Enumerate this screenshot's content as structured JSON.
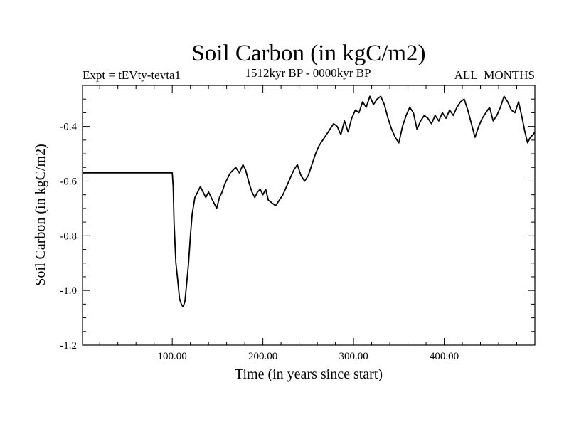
{
  "chart_data": {
    "type": "line",
    "title": "Soil Carbon (in kgC/m2)",
    "subtitle_left": "Expt = tEVty-tevta1",
    "subtitle_center": "1512kyr BP - 0000kyr BP",
    "subtitle_right": "ALL_MONTHS",
    "xlabel": "Time (in years since start)",
    "ylabel": "Soil Carbon (in kgC/m2)",
    "xlim": [
      1,
      500
    ],
    "ylim": [
      -1.2,
      -0.25
    ],
    "xticks": [
      {
        "value": 100,
        "label": "100.00"
      },
      {
        "value": 200,
        "label": "200.00"
      },
      {
        "value": 300,
        "label": "300.00"
      },
      {
        "value": 400,
        "label": "400.00"
      }
    ],
    "yticks": [
      {
        "value": -1.2,
        "label": "-1.2"
      },
      {
        "value": -1.0,
        "label": "-1.0"
      },
      {
        "value": -0.8,
        "label": "-0.8"
      },
      {
        "value": -0.6,
        "label": "-0.6"
      },
      {
        "value": -0.4,
        "label": "-0.4"
      }
    ],
    "series": [
      {
        "name": "Soil Carbon",
        "color": "#000000",
        "points": [
          [
            1,
            -0.57
          ],
          [
            100,
            -0.57
          ],
          [
            101,
            -0.62
          ],
          [
            102,
            -0.75
          ],
          [
            104,
            -0.9
          ],
          [
            106,
            -0.96
          ],
          [
            108,
            -1.03
          ],
          [
            110,
            -1.05
          ],
          [
            112,
            -1.06
          ],
          [
            114,
            -1.04
          ],
          [
            116,
            -0.97
          ],
          [
            118,
            -0.9
          ],
          [
            120,
            -0.8
          ],
          [
            122,
            -0.72
          ],
          [
            125,
            -0.66
          ],
          [
            128,
            -0.64
          ],
          [
            131,
            -0.62
          ],
          [
            134,
            -0.64
          ],
          [
            137,
            -0.66
          ],
          [
            140,
            -0.64
          ],
          [
            143,
            -0.66
          ],
          [
            146,
            -0.68
          ],
          [
            149,
            -0.7
          ],
          [
            152,
            -0.66
          ],
          [
            155,
            -0.64
          ],
          [
            158,
            -0.61
          ],
          [
            161,
            -0.59
          ],
          [
            164,
            -0.57
          ],
          [
            167,
            -0.56
          ],
          [
            170,
            -0.55
          ],
          [
            174,
            -0.57
          ],
          [
            178,
            -0.54
          ],
          [
            181,
            -0.56
          ],
          [
            185,
            -0.61
          ],
          [
            188,
            -0.64
          ],
          [
            191,
            -0.66
          ],
          [
            194,
            -0.64
          ],
          [
            197,
            -0.63
          ],
          [
            200,
            -0.65
          ],
          [
            203,
            -0.63
          ],
          [
            206,
            -0.67
          ],
          [
            210,
            -0.68
          ],
          [
            214,
            -0.69
          ],
          [
            218,
            -0.67
          ],
          [
            222,
            -0.65
          ],
          [
            226,
            -0.62
          ],
          [
            230,
            -0.59
          ],
          [
            234,
            -0.56
          ],
          [
            238,
            -0.54
          ],
          [
            242,
            -0.58
          ],
          [
            246,
            -0.6
          ],
          [
            250,
            -0.58
          ],
          [
            254,
            -0.54
          ],
          [
            258,
            -0.5
          ],
          [
            262,
            -0.47
          ],
          [
            266,
            -0.45
          ],
          [
            270,
            -0.43
          ],
          [
            274,
            -0.41
          ],
          [
            278,
            -0.39
          ],
          [
            282,
            -0.4
          ],
          [
            286,
            -0.43
          ],
          [
            290,
            -0.38
          ],
          [
            294,
            -0.42
          ],
          [
            298,
            -0.37
          ],
          [
            302,
            -0.34
          ],
          [
            306,
            -0.35
          ],
          [
            310,
            -0.31
          ],
          [
            314,
            -0.33
          ],
          [
            318,
            -0.29
          ],
          [
            322,
            -0.32
          ],
          [
            326,
            -0.3
          ],
          [
            330,
            -0.29
          ],
          [
            334,
            -0.32
          ],
          [
            338,
            -0.37
          ],
          [
            342,
            -0.41
          ],
          [
            346,
            -0.44
          ],
          [
            350,
            -0.46
          ],
          [
            354,
            -0.4
          ],
          [
            358,
            -0.36
          ],
          [
            362,
            -0.33
          ],
          [
            366,
            -0.35
          ],
          [
            370,
            -0.41
          ],
          [
            374,
            -0.38
          ],
          [
            378,
            -0.36
          ],
          [
            382,
            -0.37
          ],
          [
            386,
            -0.39
          ],
          [
            390,
            -0.36
          ],
          [
            394,
            -0.38
          ],
          [
            398,
            -0.35
          ],
          [
            402,
            -0.37
          ],
          [
            406,
            -0.34
          ],
          [
            410,
            -0.36
          ],
          [
            414,
            -0.33
          ],
          [
            418,
            -0.31
          ],
          [
            422,
            -0.3
          ],
          [
            426,
            -0.34
          ],
          [
            430,
            -0.39
          ],
          [
            434,
            -0.44
          ],
          [
            438,
            -0.4
          ],
          [
            442,
            -0.37
          ],
          [
            446,
            -0.35
          ],
          [
            450,
            -0.33
          ],
          [
            454,
            -0.38
          ],
          [
            458,
            -0.36
          ],
          [
            462,
            -0.33
          ],
          [
            466,
            -0.29
          ],
          [
            470,
            -0.31
          ],
          [
            474,
            -0.34
          ],
          [
            478,
            -0.35
          ],
          [
            482,
            -0.31
          ],
          [
            486,
            -0.37
          ],
          [
            489,
            -0.42
          ],
          [
            492,
            -0.46
          ],
          [
            495,
            -0.44
          ],
          [
            498,
            -0.43
          ],
          [
            500,
            -0.42
          ]
        ]
      }
    ]
  }
}
